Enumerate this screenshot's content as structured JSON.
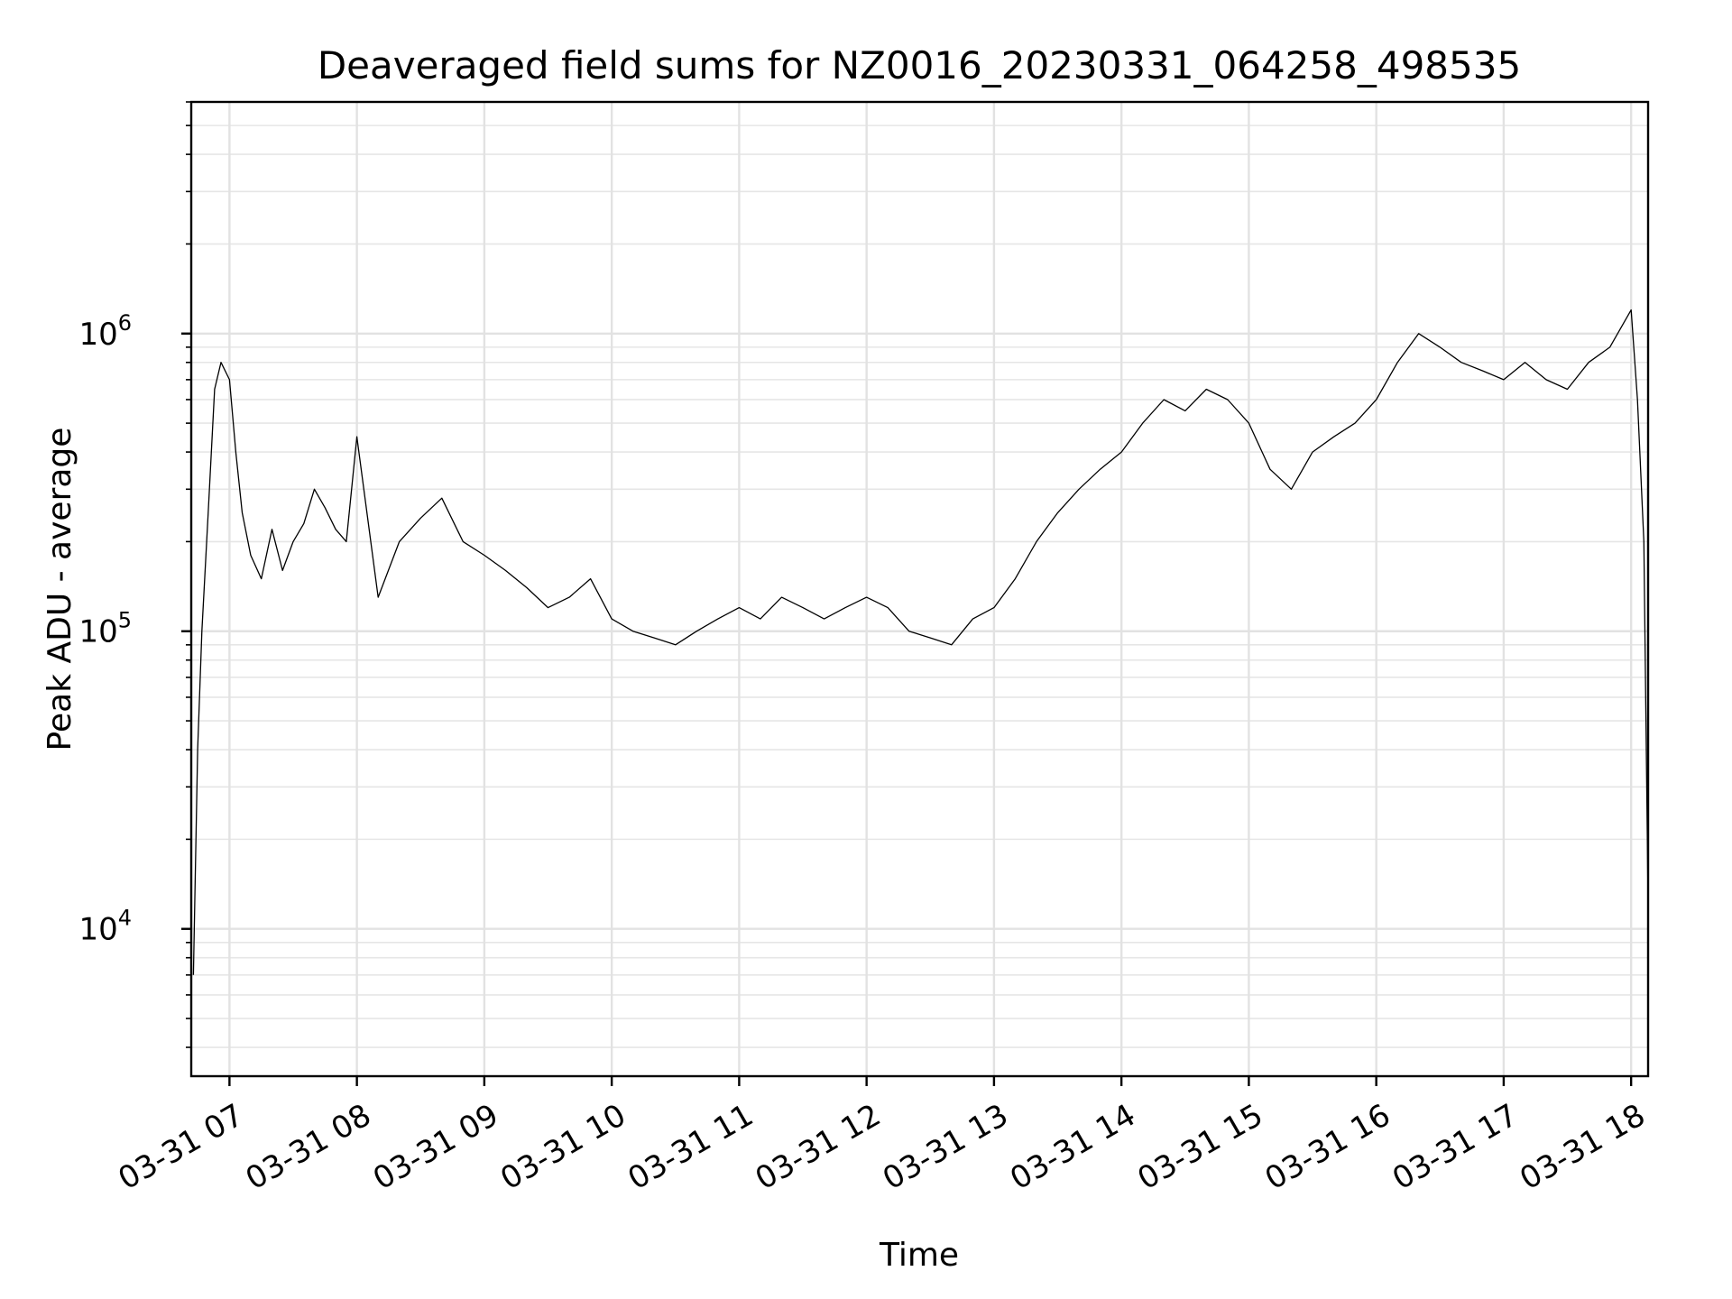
{
  "chart_data": {
    "type": "line",
    "title": "Deaveraged field sums for NZ0016_20230331_064258_498535",
    "xlabel": "Time",
    "ylabel": "Peak ADU - average",
    "y_scale": "log",
    "ylim": [
      3200,
      6000000
    ],
    "xlim": [
      "03-31 06:42",
      "03-31 18:08"
    ],
    "x_ticks": [
      "03-31 07",
      "03-31 08",
      "03-31 09",
      "03-31 10",
      "03-31 11",
      "03-31 12",
      "03-31 13",
      "03-31 14",
      "03-31 15",
      "03-31 16",
      "03-31 17",
      "03-31 18"
    ],
    "y_ticks": [
      {
        "value": 10000,
        "base": "10",
        "exp": "4"
      },
      {
        "value": 100000,
        "base": "10",
        "exp": "5"
      },
      {
        "value": 1000000,
        "base": "10",
        "exp": "6"
      }
    ],
    "grid": true,
    "line_color": "#000000",
    "series": [
      {
        "x": [
          "03-31 06:43",
          "03-31 06:45",
          "03-31 06:47",
          "03-31 06:50",
          "03-31 06:53",
          "03-31 06:56",
          "03-31 07:00",
          "03-31 07:03",
          "03-31 07:06",
          "03-31 07:10",
          "03-31 07:15",
          "03-31 07:20",
          "03-31 07:25",
          "03-31 07:30",
          "03-31 07:35",
          "03-31 07:40",
          "03-31 07:45",
          "03-31 07:50",
          "03-31 07:55",
          "03-31 08:00",
          "03-31 08:10",
          "03-31 08:20",
          "03-31 08:30",
          "03-31 08:40",
          "03-31 08:50",
          "03-31 09:00",
          "03-31 09:10",
          "03-31 09:20",
          "03-31 09:30",
          "03-31 09:40",
          "03-31 09:50",
          "03-31 10:00",
          "03-31 10:10",
          "03-31 10:20",
          "03-31 10:30",
          "03-31 10:40",
          "03-31 10:50",
          "03-31 11:00",
          "03-31 11:10",
          "03-31 11:20",
          "03-31 11:30",
          "03-31 11:40",
          "03-31 11:50",
          "03-31 12:00",
          "03-31 12:10",
          "03-31 12:20",
          "03-31 12:30",
          "03-31 12:40",
          "03-31 12:50",
          "03-31 13:00",
          "03-31 13:10",
          "03-31 13:20",
          "03-31 13:30",
          "03-31 13:40",
          "03-31 13:50",
          "03-31 14:00",
          "03-31 14:10",
          "03-31 14:20",
          "03-31 14:30",
          "03-31 14:40",
          "03-31 14:50",
          "03-31 15:00",
          "03-31 15:10",
          "03-31 15:20",
          "03-31 15:30",
          "03-31 15:40",
          "03-31 15:50",
          "03-31 16:00",
          "03-31 16:10",
          "03-31 16:20",
          "03-31 16:30",
          "03-31 16:40",
          "03-31 16:50",
          "03-31 17:00",
          "03-31 17:10",
          "03-31 17:20",
          "03-31 17:30",
          "03-31 17:40",
          "03-31 17:50",
          "03-31 18:00",
          "03-31 18:03",
          "03-31 18:06",
          "03-31 18:08"
        ],
        "y": [
          7000,
          40000,
          100000,
          250000,
          650000,
          800000,
          700000,
          400000,
          250000,
          180000,
          150000,
          220000,
          160000,
          200000,
          230000,
          300000,
          260000,
          220000,
          200000,
          450000,
          130000,
          200000,
          240000,
          280000,
          200000,
          180000,
          160000,
          140000,
          120000,
          130000,
          150000,
          110000,
          100000,
          95000,
          90000,
          100000,
          110000,
          120000,
          110000,
          130000,
          120000,
          110000,
          120000,
          130000,
          120000,
          100000,
          95000,
          90000,
          110000,
          120000,
          150000,
          200000,
          250000,
          300000,
          350000,
          400000,
          500000,
          600000,
          550000,
          650000,
          600000,
          500000,
          350000,
          300000,
          400000,
          450000,
          500000,
          600000,
          800000,
          1000000,
          900000,
          800000,
          750000,
          700000,
          800000,
          700000,
          650000,
          800000,
          900000,
          1200000,
          600000,
          200000,
          12000
        ]
      }
    ]
  }
}
